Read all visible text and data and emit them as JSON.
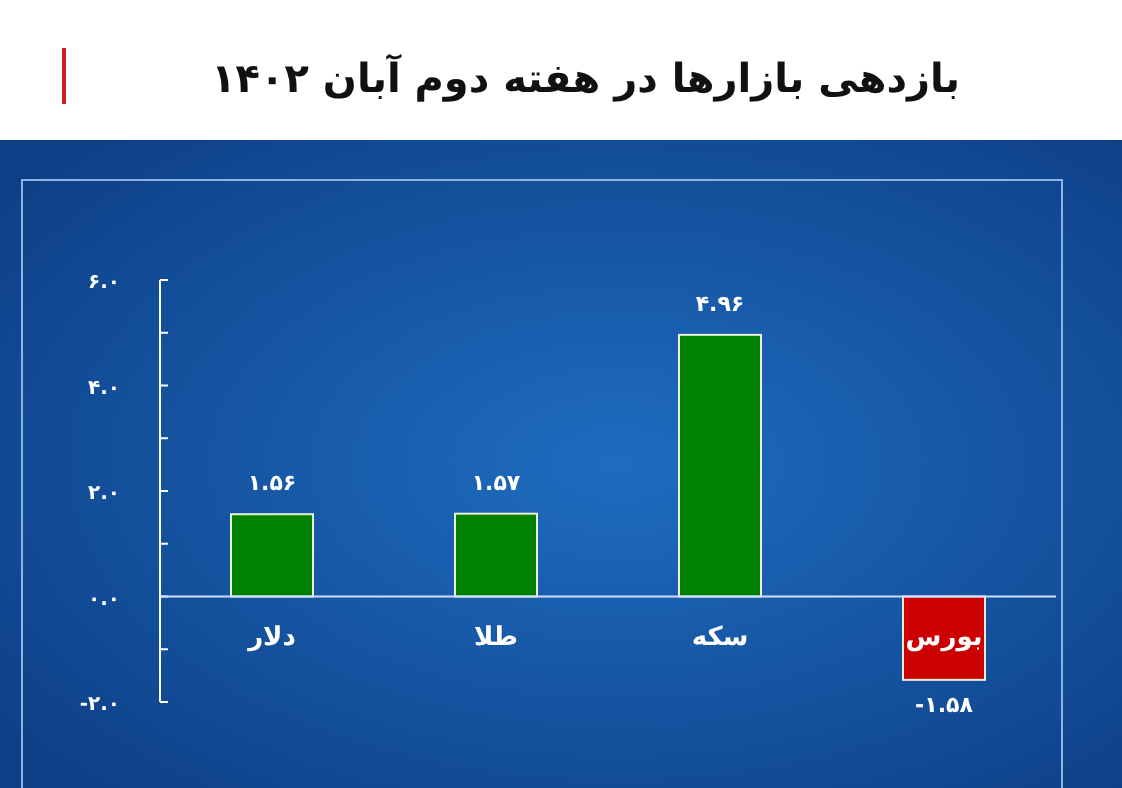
{
  "chart_data": {
    "type": "bar",
    "title": "بازدهی بازارها در هفته دوم آبان ۱۴۰۲",
    "categories": [
      "دلار",
      "طلا",
      "سکه",
      "بورس"
    ],
    "values": [
      1.56,
      1.57,
      4.96,
      -1.58
    ],
    "colors": [
      "#008000",
      "#008000",
      "#008000",
      "#cc0000"
    ],
    "value_labels": [
      "۱.۵۶",
      "۱.۵۷",
      "۴.۹۶",
      "-۱.۵۸"
    ],
    "ylim": [
      -2,
      6
    ],
    "yticks": [
      {
        "value": -2,
        "label": "-۲.۰"
      },
      {
        "value": -1,
        "label": null
      },
      {
        "value": 0,
        "label": "۰.۰"
      },
      {
        "value": 1,
        "label": null
      },
      {
        "value": 2,
        "label": "۲.۰"
      },
      {
        "value": 3,
        "label": null
      },
      {
        "value": 4,
        "label": "۴.۰"
      },
      {
        "value": 5,
        "label": null
      },
      {
        "value": 6,
        "label": "۶.۰"
      }
    ],
    "grid": false
  }
}
